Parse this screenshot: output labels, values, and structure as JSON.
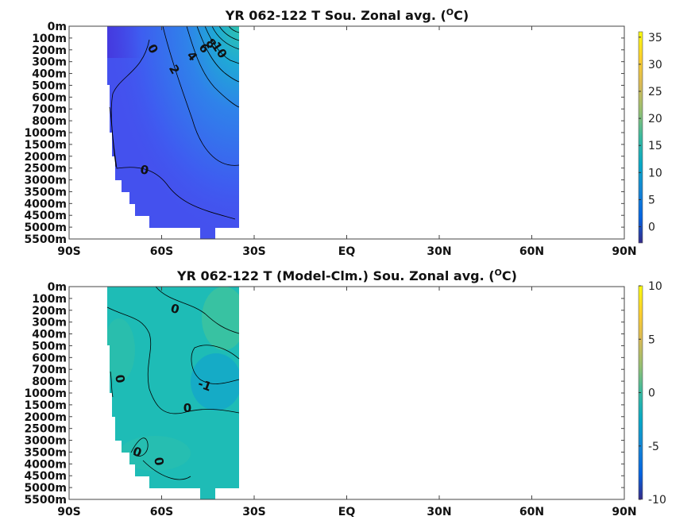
{
  "chart_data": [
    {
      "type": "heatmap",
      "title": "YR 062-122 T Sou. Zonal avg. (",
      "title_sup": "O",
      "title_end": "C)",
      "x_tick_labels": [
        "90S",
        "60S",
        "30S",
        "EQ",
        "30N",
        "60N",
        "90N"
      ],
      "x_tick_values": [
        -90,
        -60,
        -30,
        0,
        30,
        60,
        90
      ],
      "y_tick_labels": [
        "0m",
        "100m",
        "200m",
        "300m",
        "400m",
        "500m",
        "600m",
        "700m",
        "800m",
        "1000m",
        "1500m",
        "2000m",
        "2500m",
        "3000m",
        "3500m",
        "4000m",
        "4500m",
        "5000m",
        "5500m"
      ],
      "colorbar": {
        "min": -3,
        "max": 36,
        "ticks": [
          "35",
          "30",
          "25",
          "20",
          "15",
          "10",
          "5",
          "0"
        ],
        "tick_values": [
          35,
          30,
          25,
          20,
          15,
          10,
          5,
          0
        ]
      },
      "data_extent": {
        "lat_min": -78,
        "lat_max": -35
      },
      "contour_labels": [
        "0",
        "2",
        "4",
        "6",
        "8",
        "10",
        "0"
      ],
      "grid": false
    },
    {
      "type": "heatmap",
      "title": "YR 062-122 T (Model-Clm.) Sou. Zonal avg. (",
      "title_sup": "O",
      "title_end": "C)",
      "x_tick_labels": [
        "90S",
        "60S",
        "30S",
        "EQ",
        "30N",
        "60N",
        "90N"
      ],
      "x_tick_values": [
        -90,
        -60,
        -30,
        0,
        30,
        60,
        90
      ],
      "y_tick_labels": [
        "0m",
        "100m",
        "200m",
        "300m",
        "400m",
        "500m",
        "600m",
        "700m",
        "800m",
        "1000m",
        "1500m",
        "2000m",
        "2500m",
        "3000m",
        "3500m",
        "4000m",
        "4500m",
        "5000m",
        "5500m"
      ],
      "colorbar": {
        "min": -10,
        "max": 10,
        "ticks": [
          "10",
          "5",
          "0",
          "-5",
          "-10"
        ],
        "tick_values": [
          10,
          5,
          0,
          -5,
          -10
        ]
      },
      "data_extent": {
        "lat_min": -78,
        "lat_max": -35
      },
      "contour_labels": [
        "0",
        "0",
        "-1",
        "0",
        "0",
        "0"
      ],
      "grid": false
    }
  ]
}
